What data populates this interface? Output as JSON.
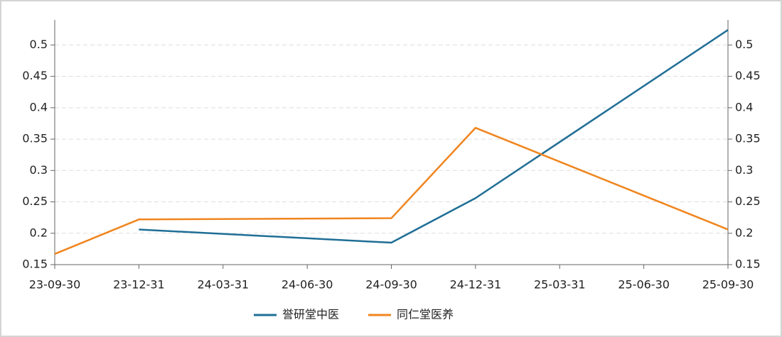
{
  "chart_data": {
    "type": "line",
    "categories": [
      "23-09-30",
      "23-12-31",
      "24-03-31",
      "24-06-30",
      "24-09-30",
      "24-12-31",
      "25-03-31",
      "25-06-30",
      "25-09-30"
    ],
    "series": [
      {
        "name": "誉研堂中医",
        "color": "#1f6e96",
        "values": [
          null,
          0.206,
          null,
          null,
          0.185,
          0.256,
          null,
          null,
          0.524
        ]
      },
      {
        "name": "同仁堂医养",
        "color": "#f0851e",
        "values": [
          0.167,
          0.222,
          null,
          null,
          0.224,
          0.368,
          null,
          null,
          0.206
        ]
      }
    ],
    "connect_gaps": true,
    "ylim": [
      0.15,
      0.54
    ],
    "yticks": [
      0.15,
      0.2,
      0.25,
      0.3,
      0.35,
      0.4,
      0.45,
      0.5
    ],
    "y2lim": [
      0.15,
      0.54
    ],
    "y2ticks": [
      0.15,
      0.2,
      0.25,
      0.3,
      0.35,
      0.4,
      0.45,
      0.5
    ],
    "grid": true,
    "legend": "bottom"
  }
}
